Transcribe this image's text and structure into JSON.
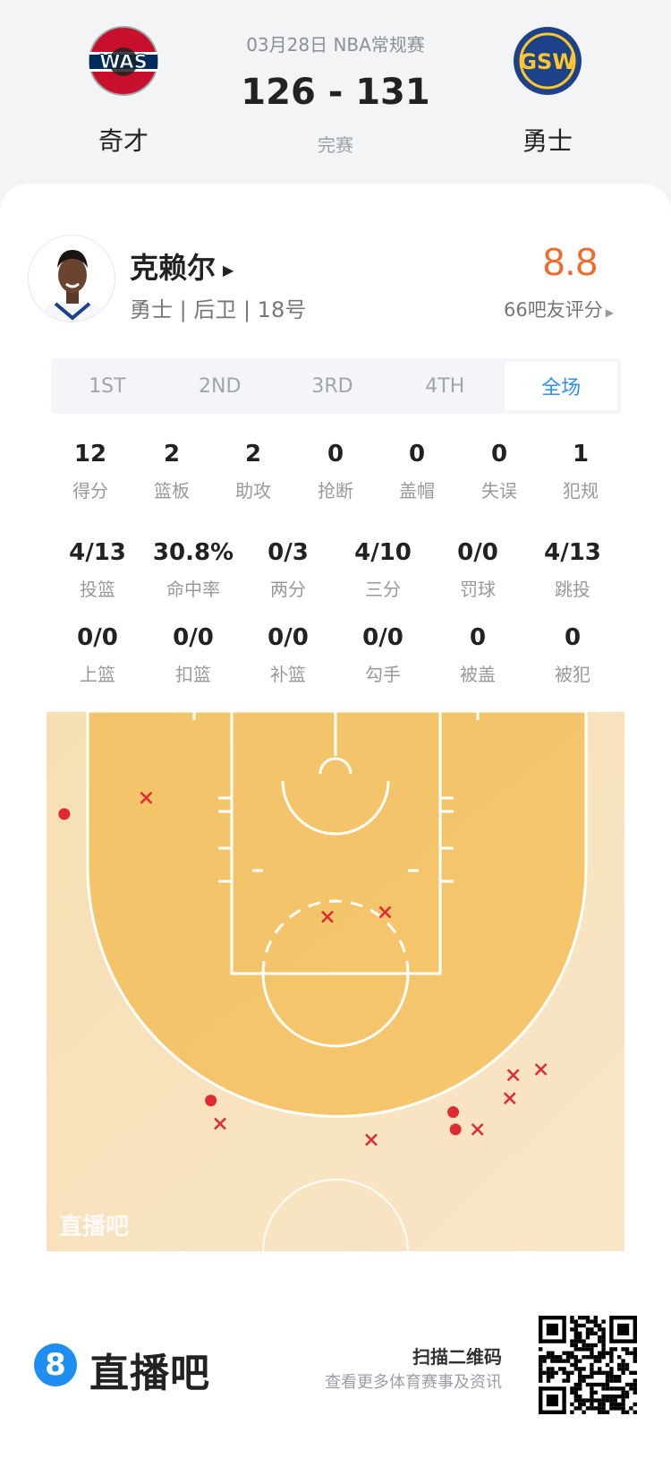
{
  "header": {
    "date": "03月28日 NBA常规赛",
    "score": "126 - 131",
    "status": "完赛",
    "home": {
      "name": "奇才",
      "logo_text": "WAS",
      "colors": [
        "#c8102e",
        "#002b5c"
      ]
    },
    "away": {
      "name": "勇士",
      "logo_text": "GSW",
      "colors": [
        "#1d428a",
        "#ffc72c"
      ]
    }
  },
  "player": {
    "name": "克赖尔",
    "info": "勇士 | 后卫 | 18号",
    "rating": "8.8",
    "raters": "66吧友评分",
    "rating_color": "#f26a2e"
  },
  "tabs": [
    {
      "label": "1ST"
    },
    {
      "label": "2ND"
    },
    {
      "label": "3RD"
    },
    {
      "label": "4TH"
    },
    {
      "label": "全场",
      "active": true
    }
  ],
  "stats_row1": [
    {
      "value": "12",
      "label": "得分"
    },
    {
      "value": "2",
      "label": "篮板"
    },
    {
      "value": "2",
      "label": "助攻"
    },
    {
      "value": "0",
      "label": "抢断"
    },
    {
      "value": "0",
      "label": "盖帽"
    },
    {
      "value": "0",
      "label": "失误"
    },
    {
      "value": "1",
      "label": "犯规"
    }
  ],
  "stats_row2": [
    {
      "value": "4/13",
      "label": "投篮"
    },
    {
      "value": "30.8%",
      "label": "命中率"
    },
    {
      "value": "0/3",
      "label": "两分"
    },
    {
      "value": "4/10",
      "label": "三分"
    },
    {
      "value": "0/0",
      "label": "罚球"
    },
    {
      "value": "4/13",
      "label": "跳投"
    }
  ],
  "stats_row3": [
    {
      "value": "0/0",
      "label": "上篮"
    },
    {
      "value": "0/0",
      "label": "扣篮"
    },
    {
      "value": "0/0",
      "label": "补篮"
    },
    {
      "value": "0/0",
      "label": "勾手"
    },
    {
      "value": "0",
      "label": "被盖"
    },
    {
      "value": "0",
      "label": "被犯"
    }
  ],
  "shot_chart": {
    "watermark": "直播吧",
    "units": "feet from basket (x: left-/right+, y: toward half court)",
    "made_color": "#e02a32",
    "shots": [
      {
        "x": -23.5,
        "y": 3.4,
        "made": true
      },
      {
        "x": -16.4,
        "y": 2.0,
        "made": false
      },
      {
        "x": -0.7,
        "y": 12.3,
        "made": false
      },
      {
        "x": 4.3,
        "y": 11.9,
        "made": false
      },
      {
        "x": -10.8,
        "y": 28.2,
        "made": true
      },
      {
        "x": -10.0,
        "y": 30.2,
        "made": false
      },
      {
        "x": 3.1,
        "y": 31.6,
        "made": false
      },
      {
        "x": 10.2,
        "y": 29.2,
        "made": true
      },
      {
        "x": 10.4,
        "y": 30.7,
        "made": true
      },
      {
        "x": 12.3,
        "y": 30.7,
        "made": false
      },
      {
        "x": 15.1,
        "y": 28.0,
        "made": false
      },
      {
        "x": 15.4,
        "y": 26.0,
        "made": false
      },
      {
        "x": 17.8,
        "y": 25.5,
        "made": false
      }
    ]
  },
  "footer": {
    "brand_icon": "8",
    "brand": "直播吧",
    "brand_color": "#1e8ff0",
    "scan_title": "扫描二维码",
    "scan_sub": "查看更多体育赛事及资讯"
  }
}
